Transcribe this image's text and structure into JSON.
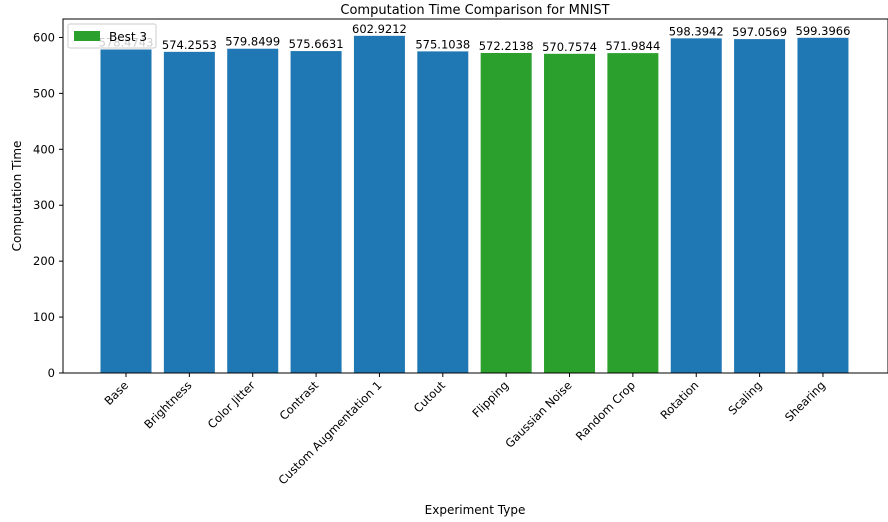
{
  "chart_data": {
    "type": "bar",
    "title": "Computation Time Comparison for MNIST",
    "xlabel": "Experiment Type",
    "ylabel": "Computation Time",
    "ylim": [
      0,
      633
    ],
    "yticks": [
      0,
      100,
      200,
      300,
      400,
      500,
      600
    ],
    "grid": false,
    "legend": {
      "placement": "top-left",
      "entries": [
        {
          "label": "Best 3",
          "color": "#2ca02c"
        }
      ]
    },
    "categories": [
      "Base",
      "Brightness",
      "Color Jitter",
      "Contrast",
      "Custom Augmentation 1",
      "Cutout",
      "Flipping",
      "Gaussian Noise",
      "Random Crop",
      "Rotation",
      "Scaling",
      "Shearing"
    ],
    "values": [
      578.4743,
      574.2553,
      579.8499,
      575.6631,
      602.9212,
      575.1038,
      572.2138,
      570.7574,
      571.9844,
      598.3942,
      597.0569,
      599.3966
    ],
    "value_labels": [
      "578.4743",
      "574.2553",
      "579.8499",
      "575.6631",
      "602.9212",
      "575.1038",
      "572.2138",
      "570.7574",
      "571.9844",
      "598.3942",
      "597.0569",
      "599.3966"
    ],
    "highlighted": [
      false,
      false,
      false,
      false,
      false,
      false,
      true,
      true,
      true,
      false,
      false,
      false
    ],
    "colors": {
      "default": "#1f77b4",
      "best": "#2ca02c"
    }
  }
}
